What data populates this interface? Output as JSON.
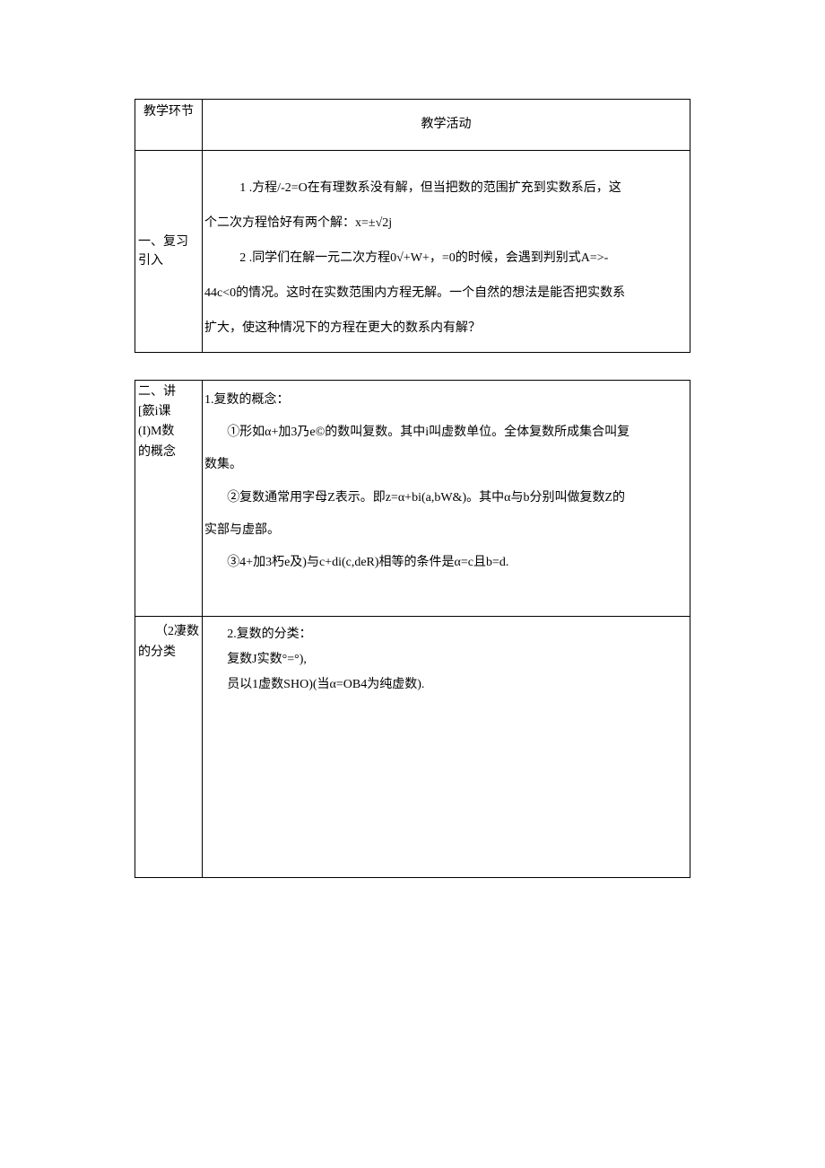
{
  "table1": {
    "header": {
      "left": "教学环节",
      "right": "教学活动"
    },
    "row1": {
      "left": "一、复习引入",
      "p1": "1 .方程/-2=O在有理数系没有解，但当把数的范围扩充到实数系后，这",
      "p2": "个二次方程恰好有两个解：x=±√2j",
      "p3": "2 .同学们在解一元二次方程0√+W+，=0的时候，会遇到判别式A=>-",
      "p4": "44c<0的情况。这时在实数范围内方程无解。一个自然的想法是能否把实数系",
      "p5": "扩大，使这种情况下的方程在更大的数系内有解？"
    }
  },
  "table2": {
    "row1": {
      "left1": "二、讲",
      "left2": "  [籨i课",
      "left3": "  (I)M数",
      "left4": "的概念",
      "p1": "1.复数的概念：",
      "p2": "①形如α+加3乃e©的数叫复数。其中i叫虚数单位。全体复数所成集合叫复",
      "p3": "数集。",
      "p4": "②复数通常用字母Z表示。即z=α+bi(a,bW&)。其中α与b分别叫做复数Z的",
      "p5": "实部与虚部。",
      "p6": "③4+加3朽e及)与c+di(c,deR)相等的条件是α=c且b=d."
    },
    "row2": {
      "left1": "（2凄数",
      "left2": "的分类",
      "p1": "2.复数的分类：",
      "p2": "复数J实数°=°),",
      "p3": "员以1虚数SHO)(当α=OB4为纯虚数)."
    }
  }
}
